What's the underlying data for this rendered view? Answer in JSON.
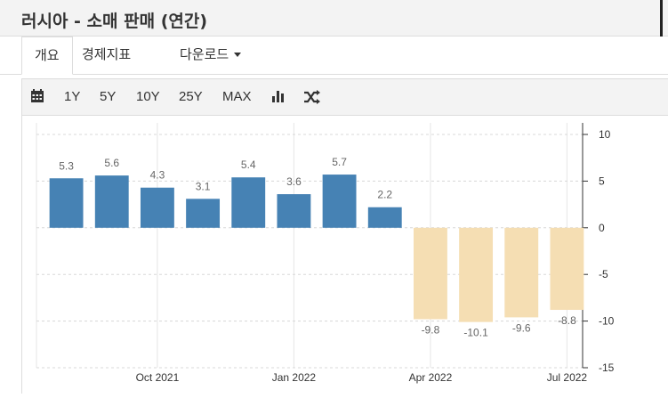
{
  "page": {
    "title": "러시아 - 소매 판매 (연간)"
  },
  "tabs": [
    {
      "label": "개요"
    },
    {
      "label": "경제지표"
    },
    {
      "label": "다운로드"
    }
  ],
  "toolbar": {
    "calendar_icon": "calendar-icon",
    "ranges": [
      "1Y",
      "5Y",
      "10Y",
      "25Y",
      "MAX"
    ],
    "bar_chart_icon": "bar-chart-icon",
    "shuffle_icon": "shuffle-icon"
  },
  "colors": {
    "positive": "#4682b4",
    "negative": "#f5deb3",
    "grid": "#e6e6e6"
  },
  "chart_data": {
    "type": "bar",
    "categories": [
      "2021-08",
      "2021-09",
      "2021-10",
      "2021-11",
      "2021-12",
      "2022-01",
      "2022-02",
      "2022-03",
      "2022-04",
      "2022-05",
      "2022-06",
      "2022-07"
    ],
    "values": [
      5.3,
      5.6,
      4.3,
      3.1,
      5.4,
      3.6,
      5.7,
      2.2,
      -9.8,
      -10.1,
      -9.6,
      -8.8
    ],
    "value_labels": [
      "5.3",
      "5.6",
      "4.3",
      "3.1",
      "5.4",
      "3.6",
      "5.7",
      "2.2",
      "-9.8",
      "-10.1",
      "-9.6",
      "-8.8"
    ],
    "x_tick_labels": [
      "Oct 2021",
      "Jan 2022",
      "Apr 2022",
      "Jul 2022"
    ],
    "x_tick_categories": [
      "2021-10",
      "2022-01",
      "2022-04",
      "2022-07"
    ],
    "y_ticks": [
      10,
      5,
      0,
      -5,
      -10,
      -15
    ],
    "y_tick_labels": [
      "10",
      "5",
      "0",
      "-5",
      "-10",
      "-15"
    ],
    "ylim": [
      -15,
      10
    ],
    "y_axis_side": "right",
    "grid": true,
    "title": "",
    "xlabel": "",
    "ylabel": ""
  }
}
